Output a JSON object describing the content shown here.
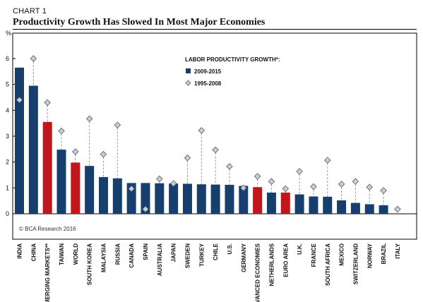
{
  "header": {
    "label": "CHART 1",
    "title": "Productivity Growth Has Slowed In Most Major Economies"
  },
  "colors": {
    "bar_default": "#173f6e",
    "bar_highlight": "#c0161c",
    "diamond_fill": "#c9cdd6",
    "diamond_stroke": "#555a66",
    "connector": "#9a9a9a"
  },
  "chart_data": {
    "type": "bar",
    "unit_label": "%",
    "ylim": [
      0,
      6
    ],
    "yticks": [
      0,
      1,
      2,
      3,
      4,
      5,
      6
    ],
    "legend": {
      "title": "LABOR PRODUCTIVITY GROWTH*:",
      "placement": "top-center",
      "entries": [
        "2009-2015",
        "1995-2008"
      ]
    },
    "categories": [
      "INDIA",
      "CHINA",
      "EMERGING MARKETS**",
      "TAIWAN",
      "WORLD",
      "SOUTH KOREA",
      "MALAYSIA",
      "RUSSIA",
      "CANADA",
      "SPAIN",
      "AUSTRALIA",
      "JAPAN",
      "SWEDEN",
      "TURKEY",
      "CHILE",
      "U.S.",
      "GERMANY",
      "ADVANCED ECONOMIES",
      "NETHERLANDS",
      "EURO AREA",
      "U.K.",
      "FRANCE",
      "SOUTH AFRICA",
      "MEXICO",
      "SWITZERLAND",
      "NORWAY",
      "BRAZIL",
      "ITALY"
    ],
    "highlighted": [
      "EMERGING MARKETS**",
      "WORLD",
      "ADVANCED ECONOMIES",
      "EURO AREA"
    ],
    "series": [
      {
        "name": "2009-2015",
        "style": "bar",
        "values": [
          5.65,
          4.95,
          3.55,
          2.48,
          1.98,
          1.85,
          1.42,
          1.37,
          1.19,
          1.19,
          1.18,
          1.17,
          1.16,
          1.14,
          1.13,
          1.12,
          1.08,
          1.03,
          0.82,
          0.82,
          0.75,
          0.67,
          0.66,
          0.52,
          0.42,
          0.37,
          0.33,
          0.0
        ]
      },
      {
        "name": "1995-2008",
        "style": "diamond",
        "values": [
          4.4,
          6.0,
          4.3,
          3.2,
          2.4,
          3.67,
          2.3,
          3.43,
          0.97,
          0.18,
          1.35,
          1.17,
          2.16,
          3.22,
          2.47,
          1.83,
          1.0,
          1.45,
          1.25,
          0.97,
          1.64,
          1.05,
          2.07,
          1.15,
          1.25,
          1.03,
          0.9,
          0.18
        ]
      }
    ]
  },
  "footer": {
    "source": "© BCA Research 2016"
  }
}
